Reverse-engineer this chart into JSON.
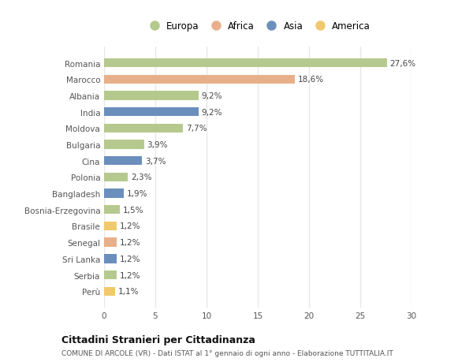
{
  "categories": [
    "Romania",
    "Marocco",
    "Albania",
    "India",
    "Moldova",
    "Bulgaria",
    "Cina",
    "Polonia",
    "Bangladesh",
    "Bosnia-Erzegovina",
    "Brasile",
    "Senegal",
    "Sri Lanka",
    "Serbia",
    "Perù"
  ],
  "values": [
    27.6,
    18.6,
    9.2,
    9.2,
    7.7,
    3.9,
    3.7,
    2.3,
    1.9,
    1.5,
    1.2,
    1.2,
    1.2,
    1.2,
    1.1
  ],
  "labels": [
    "27,6%",
    "18,6%",
    "9,2%",
    "9,2%",
    "7,7%",
    "3,9%",
    "3,7%",
    "2,3%",
    "1,9%",
    "1,5%",
    "1,2%",
    "1,2%",
    "1,2%",
    "1,2%",
    "1,1%"
  ],
  "continents": [
    "Europa",
    "Africa",
    "Europa",
    "Asia",
    "Europa",
    "Europa",
    "Asia",
    "Europa",
    "Asia",
    "Europa",
    "America",
    "Africa",
    "Asia",
    "Europa",
    "America"
  ],
  "colors": {
    "Europa": "#b5c98e",
    "Africa": "#e8b08a",
    "Asia": "#6b8fbd",
    "America": "#f0c96e"
  },
  "legend_order": [
    "Europa",
    "Africa",
    "Asia",
    "America"
  ],
  "title": "Cittadini Stranieri per Cittadinanza",
  "subtitle": "COMUNE DI ARCOLE (VR) - Dati ISTAT al 1° gennaio di ogni anno - Elaborazione TUTTITALIA.IT",
  "xlim": [
    0,
    30
  ],
  "xticks": [
    0,
    5,
    10,
    15,
    20,
    25,
    30
  ],
  "background_color": "#ffffff",
  "grid_color": "#e8e8e8"
}
